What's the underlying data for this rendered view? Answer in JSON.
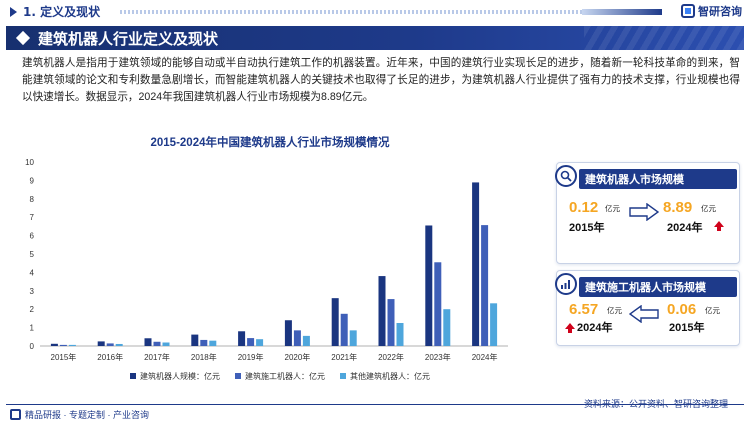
{
  "header": {
    "section_title": "1. 定义及现状",
    "logo_text": "智研咨询"
  },
  "banner": {
    "title": "建筑机器人行业定义及现状"
  },
  "paragraph": "建筑机器人是指用于建筑领域的能够自动或半自动执行建筑工作的机器装置。近年来，中国的建筑行业实现长足的进步，随着新一轮科技革命的到来，智能建筑领域的论文和专利数量急剧增长，而智能建筑机器人的关键技术也取得了长足的进步，为建筑机器人行业提供了强有力的技术支撑，行业规模也得以快速增长。数据显示，2024年我国建筑机器人行业市场规模为8.89亿元。",
  "chart_data": {
    "type": "bar",
    "title": "2015-2024年中国建筑机器人行业市场规模情况",
    "categories": [
      "2015年",
      "2016年",
      "2017年",
      "2018年",
      "2019年",
      "2020年",
      "2021年",
      "2022年",
      "2023年",
      "2024年"
    ],
    "series": [
      {
        "name": "建筑机器人规模：亿元",
        "color": "#1a3580",
        "values": [
          0.12,
          0.25,
          0.42,
          0.62,
          0.8,
          1.4,
          2.6,
          3.8,
          6.55,
          8.89
        ]
      },
      {
        "name": "建筑施工机器人：亿元",
        "color": "#3f5fb8",
        "values": [
          0.06,
          0.14,
          0.23,
          0.33,
          0.43,
          0.85,
          1.75,
          2.55,
          4.55,
          6.57
        ]
      },
      {
        "name": "其他建筑机器人：亿元",
        "color": "#4ea6dc",
        "values": [
          0.06,
          0.11,
          0.19,
          0.29,
          0.37,
          0.55,
          0.85,
          1.25,
          2.0,
          2.32
        ]
      }
    ],
    "ylim": [
      0,
      10
    ],
    "yticks": [
      0,
      1,
      2,
      3,
      4,
      5,
      6,
      7,
      8,
      9,
      10
    ],
    "legend_position": "bottom",
    "grid": false
  },
  "panel_market": {
    "title": "建筑机器人市场规模",
    "start_value": "0.12",
    "start_unit": "亿元",
    "start_year": "2015年",
    "end_value": "8.89",
    "end_unit": "亿元",
    "end_year": "2024年"
  },
  "panel_construction": {
    "title": "建筑施工机器人市场规模",
    "left_value": "6.57",
    "left_unit": "亿元",
    "left_year": "2024年",
    "right_value": "0.06",
    "right_unit": "亿元",
    "right_year": "2015年"
  },
  "footer": {
    "left_text": "精品研报 · 专题定制 · 产业咨询",
    "source": "资料来源：公开资料、智研咨询整理"
  },
  "colors": {
    "brand": "#1e3a8a",
    "highlight": "#f5a623",
    "up_arrow": "#d0021b"
  }
}
